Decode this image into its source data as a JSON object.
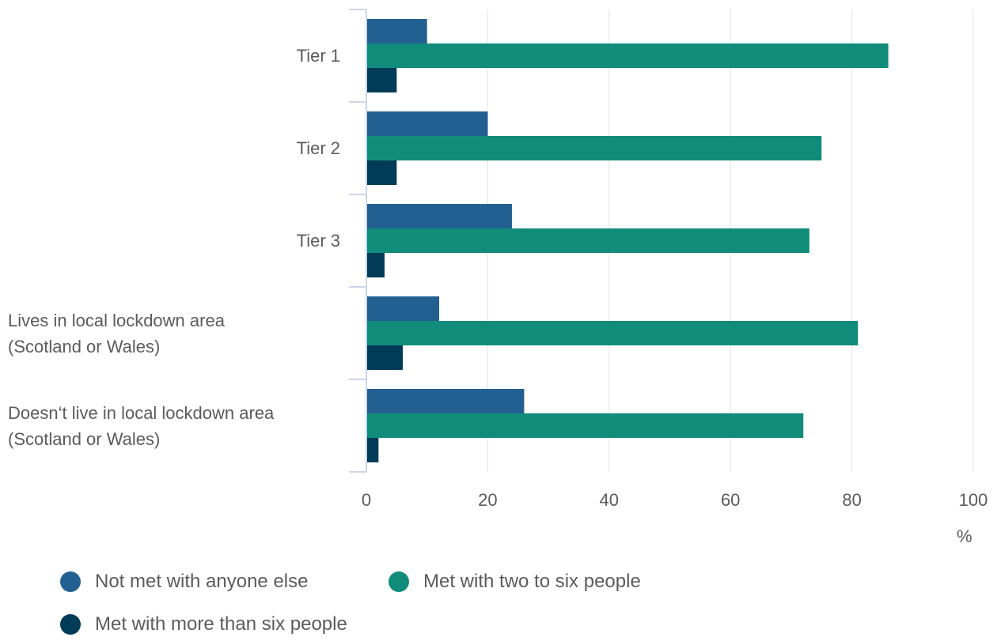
{
  "chart_data": {
    "type": "bar",
    "orientation": "horizontal",
    "categories": [
      [
        "Tier 1"
      ],
      [
        "Tier 2"
      ],
      [
        "Tier 3"
      ],
      [
        "Lives in local lockdown area",
        "(Scotland or Wales)"
      ],
      [
        "Doesn‘t live in local lockdown area",
        "(Scotland or Wales)"
      ]
    ],
    "series": [
      {
        "name": "Not met with anyone else",
        "color": "#236092",
        "values": [
          10,
          20,
          24,
          12,
          26
        ]
      },
      {
        "name": "Met with two to six people",
        "color": "#118c7b",
        "values": [
          86,
          75,
          73,
          81,
          72
        ]
      },
      {
        "name": "Met with more than six people",
        "color": "#003c57",
        "values": [
          5,
          5,
          3,
          6,
          2
        ]
      }
    ],
    "xlim": [
      0,
      100
    ],
    "xticks": [
      "0",
      "20",
      "40",
      "60",
      "80",
      "100"
    ],
    "xunit": "%",
    "grid": true,
    "legend_position": "bottom"
  }
}
